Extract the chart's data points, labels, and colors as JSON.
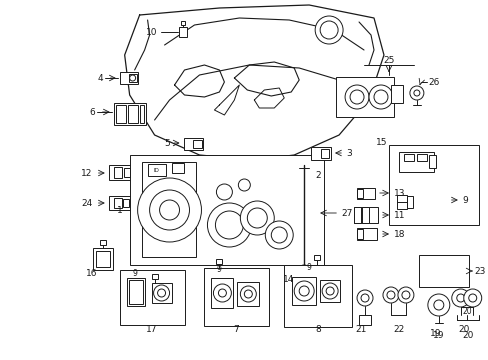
{
  "background_color": "#ffffff",
  "fig_width": 4.89,
  "fig_height": 3.6,
  "dpi": 100,
  "line_color": "#1a1a1a",
  "lw": 0.7,
  "fs": 6.5
}
